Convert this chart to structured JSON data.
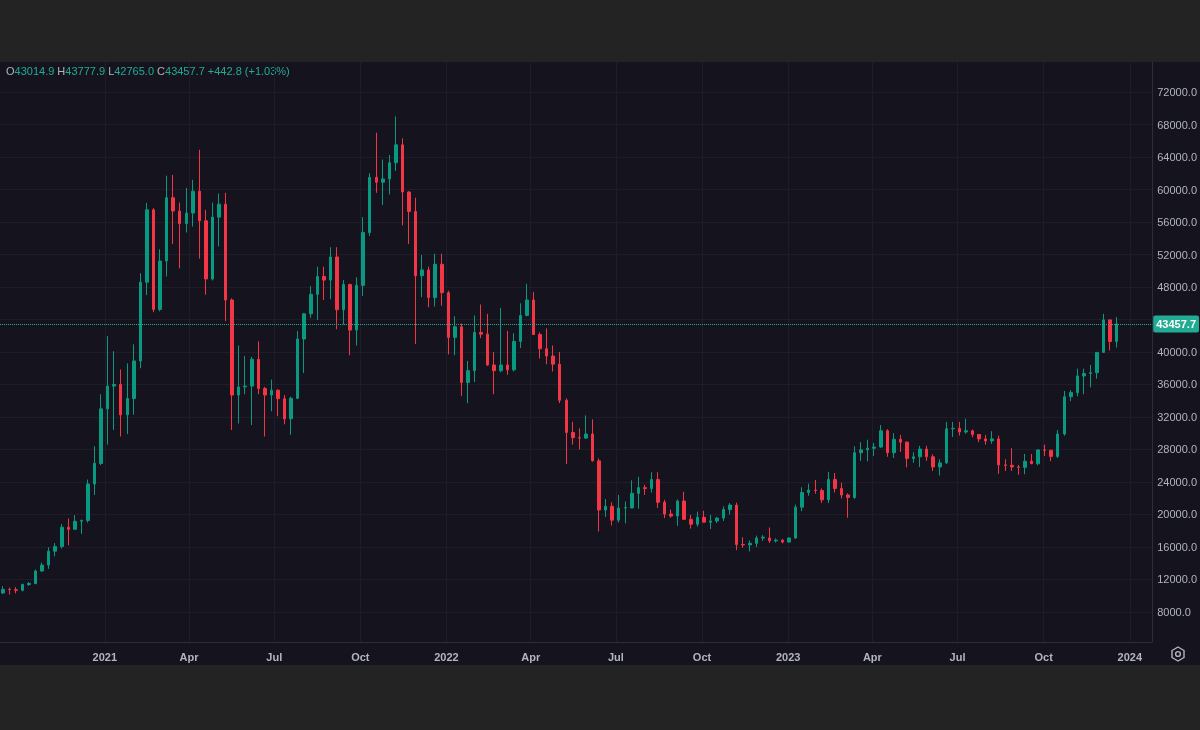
{
  "chart_data": {
    "type": "candlestick",
    "annotations": [
      "O43014.9 H43777.9 L42765.0 C43457.7 +442.8 (+1.03%)"
    ],
    "x": [
      "2020-09-14",
      "2020-09-21",
      "2020-09-28",
      "2020-10-05",
      "2020-10-12",
      "2020-10-19",
      "2020-10-26",
      "2020-11-02",
      "2020-11-09",
      "2020-11-16",
      "2020-11-23",
      "2020-11-30",
      "2020-12-07",
      "2020-12-14",
      "2020-12-21",
      "2020-12-28",
      "2021-01-04",
      "2021-01-11",
      "2021-01-18",
      "2021-01-25",
      "2021-02-01",
      "2021-02-08",
      "2021-02-15",
      "2021-02-22",
      "2021-03-01",
      "2021-03-08",
      "2021-03-15",
      "2021-03-22",
      "2021-03-29",
      "2021-04-05",
      "2021-04-12",
      "2021-04-19",
      "2021-04-26",
      "2021-05-03",
      "2021-05-10",
      "2021-05-17",
      "2021-05-24",
      "2021-05-31",
      "2021-06-07",
      "2021-06-14",
      "2021-06-21",
      "2021-06-28",
      "2021-07-05",
      "2021-07-12",
      "2021-07-19",
      "2021-07-26",
      "2021-08-02",
      "2021-08-09",
      "2021-08-16",
      "2021-08-23",
      "2021-08-30",
      "2021-09-06",
      "2021-09-13",
      "2021-09-20",
      "2021-09-27",
      "2021-10-04",
      "2021-10-11",
      "2021-10-18",
      "2021-10-25",
      "2021-11-01",
      "2021-11-08",
      "2021-11-15",
      "2021-11-22",
      "2021-11-29",
      "2021-12-06",
      "2021-12-13",
      "2021-12-20",
      "2021-12-27",
      "2022-01-03",
      "2022-01-10",
      "2022-01-17",
      "2022-01-24",
      "2022-01-31",
      "2022-02-07",
      "2022-02-14",
      "2022-02-21",
      "2022-02-28",
      "2022-03-07",
      "2022-03-14",
      "2022-03-21",
      "2022-03-28",
      "2022-04-04",
      "2022-04-11",
      "2022-04-18",
      "2022-04-25",
      "2022-05-02",
      "2022-05-09",
      "2022-05-16",
      "2022-05-23",
      "2022-05-30",
      "2022-06-06",
      "2022-06-13",
      "2022-06-20",
      "2022-06-27",
      "2022-07-04",
      "2022-07-11",
      "2022-07-18",
      "2022-07-25",
      "2022-08-01",
      "2022-08-08",
      "2022-08-15",
      "2022-08-22",
      "2022-08-29",
      "2022-09-05",
      "2022-09-12",
      "2022-09-19",
      "2022-09-26",
      "2022-10-03",
      "2022-10-10",
      "2022-10-17",
      "2022-10-24",
      "2022-10-31",
      "2022-11-07",
      "2022-11-14",
      "2022-11-21",
      "2022-11-28",
      "2022-12-05",
      "2022-12-12",
      "2022-12-19",
      "2022-12-26",
      "2023-01-02",
      "2023-01-09",
      "2023-01-16",
      "2023-01-23",
      "2023-01-30",
      "2023-02-06",
      "2023-02-13",
      "2023-02-20",
      "2023-02-27",
      "2023-03-06",
      "2023-03-13",
      "2023-03-20",
      "2023-03-27",
      "2023-04-03",
      "2023-04-10",
      "2023-04-17",
      "2023-04-24",
      "2023-05-01",
      "2023-05-08",
      "2023-05-15",
      "2023-05-22",
      "2023-05-29",
      "2023-06-05",
      "2023-06-12",
      "2023-06-19",
      "2023-06-26",
      "2023-07-03",
      "2023-07-10",
      "2023-07-17",
      "2023-07-24",
      "2023-07-31",
      "2023-08-07",
      "2023-08-14",
      "2023-08-21",
      "2023-08-28",
      "2023-09-04",
      "2023-09-11",
      "2023-09-18",
      "2023-09-25",
      "2023-10-02",
      "2023-10-09",
      "2023-10-16",
      "2023-10-23",
      "2023-10-30",
      "2023-11-06",
      "2023-11-13",
      "2023-11-20",
      "2023-11-27",
      "2023-12-04",
      "2023-12-11",
      "2023-12-18"
    ],
    "ohlc": [
      [
        10330,
        11180,
        10200,
        10780
      ],
      [
        10780,
        10990,
        10140,
        10740
      ],
      [
        10740,
        11050,
        10300,
        10670
      ],
      [
        10670,
        11490,
        10530,
        11380
      ],
      [
        11380,
        11700,
        11200,
        11500
      ],
      [
        11500,
        13220,
        11400,
        13030
      ],
      [
        13030,
        14090,
        12980,
        13770
      ],
      [
        13770,
        15960,
        13300,
        15480
      ],
      [
        15480,
        16480,
        14850,
        16050
      ],
      [
        16050,
        18820,
        15800,
        18420
      ],
      [
        18420,
        19500,
        16200,
        18180
      ],
      [
        18180,
        19920,
        18110,
        19160
      ],
      [
        19160,
        19390,
        17600,
        19260
      ],
      [
        19260,
        24300,
        19000,
        23750
      ],
      [
        23750,
        28400,
        22400,
        26280
      ],
      [
        26280,
        34800,
        26070,
        33000
      ],
      [
        33000,
        41950,
        28600,
        35800
      ],
      [
        35800,
        40100,
        30400,
        36000
      ],
      [
        36000,
        37850,
        29600,
        32270
      ],
      [
        32270,
        38600,
        29900,
        34270
      ],
      [
        34270,
        40950,
        32300,
        38900
      ],
      [
        38900,
        49700,
        38000,
        48600
      ],
      [
        48600,
        58350,
        47000,
        57500
      ],
      [
        57500,
        57700,
        44900,
        45240
      ],
      [
        45240,
        52650,
        45000,
        51200
      ],
      [
        51200,
        61700,
        49300,
        59000
      ],
      [
        59000,
        61800,
        53300,
        57350
      ],
      [
        57350,
        58400,
        50300,
        55800
      ],
      [
        55800,
        60200,
        54700,
        57100
      ],
      [
        57100,
        61200,
        55450,
        59800
      ],
      [
        59800,
        64900,
        51500,
        56150
      ],
      [
        56150,
        57500,
        47050,
        49000
      ],
      [
        49000,
        58400,
        48800,
        56600
      ],
      [
        56600,
        59500,
        53000,
        58200
      ],
      [
        58200,
        59600,
        43800,
        46400
      ],
      [
        46400,
        46600,
        30400,
        34700
      ],
      [
        34700,
        40800,
        31200,
        35700
      ],
      [
        35700,
        39500,
        34800,
        35800
      ],
      [
        35800,
        39400,
        31000,
        39100
      ],
      [
        39100,
        41300,
        34800,
        35500
      ],
      [
        35500,
        35700,
        29600,
        34700
      ],
      [
        34700,
        36600,
        32700,
        35300
      ],
      [
        35300,
        35400,
        32100,
        34250
      ],
      [
        34250,
        34700,
        31100,
        31770
      ],
      [
        31770,
        34500,
        29800,
        34300
      ],
      [
        34300,
        42600,
        34200,
        41600
      ],
      [
        41600,
        44800,
        37400,
        44700
      ],
      [
        44700,
        48100,
        44200,
        47100
      ],
      [
        47100,
        50500,
        43950,
        49300
      ],
      [
        49300,
        50500,
        46400,
        48850
      ],
      [
        48850,
        52900,
        46500,
        51700
      ],
      [
        51700,
        52900,
        42800,
        45200
      ],
      [
        45200,
        48850,
        43400,
        48300
      ],
      [
        48300,
        48400,
        39600,
        42700
      ],
      [
        42700,
        49200,
        40800,
        48200
      ],
      [
        48200,
        56600,
        46900,
        54700
      ],
      [
        54700,
        62000,
        54300,
        61500
      ],
      [
        61500,
        67000,
        59600,
        60900
      ],
      [
        60900,
        63700,
        58100,
        61300
      ],
      [
        61300,
        64250,
        59400,
        63300
      ],
      [
        63300,
        69000,
        62300,
        65500
      ],
      [
        65500,
        66300,
        55600,
        59700
      ],
      [
        59700,
        59800,
        53300,
        57300
      ],
      [
        57300,
        59000,
        41000,
        49400
      ],
      [
        49400,
        51950,
        46750,
        50100
      ],
      [
        50100,
        50500,
        45500,
        46700
      ],
      [
        46700,
        52100,
        45600,
        50800
      ],
      [
        50800,
        52100,
        45700,
        47300
      ],
      [
        47300,
        47550,
        39700,
        41800
      ],
      [
        41800,
        44400,
        39600,
        43100
      ],
      [
        43100,
        43500,
        34600,
        36250
      ],
      [
        36250,
        38900,
        33700,
        37700
      ],
      [
        37700,
        44500,
        36300,
        42400
      ],
      [
        42400,
        45850,
        41700,
        42200
      ],
      [
        42200,
        44700,
        38300,
        38400
      ],
      [
        38400,
        40000,
        34800,
        37700
      ],
      [
        37700,
        45400,
        37500,
        38400
      ],
      [
        38400,
        42600,
        37200,
        37800
      ],
      [
        37800,
        42300,
        37600,
        41300
      ],
      [
        41300,
        46000,
        40500,
        44500
      ],
      [
        44500,
        48400,
        44400,
        46400
      ],
      [
        46400,
        47400,
        42100,
        42150
      ],
      [
        42150,
        42400,
        39200,
        40400
      ],
      [
        40400,
        42900,
        38500,
        39500
      ],
      [
        39500,
        40800,
        37600,
        38500
      ],
      [
        38500,
        40000,
        33700,
        34050
      ],
      [
        34050,
        34300,
        26200,
        30100
      ],
      [
        30100,
        31400,
        28600,
        29450
      ],
      [
        29450,
        30600,
        28000,
        29400
      ],
      [
        29400,
        32200,
        29300,
        29900
      ],
      [
        29900,
        31700,
        26500,
        26600
      ],
      [
        26600,
        26900,
        17900,
        20550
      ],
      [
        20550,
        21900,
        19700,
        21000
      ],
      [
        21000,
        21500,
        18650,
        19300
      ],
      [
        19300,
        22400,
        19000,
        20800
      ],
      [
        20800,
        21600,
        18900,
        20850
      ],
      [
        20800,
        24200,
        20750,
        22600
      ],
      [
        22600,
        24650,
        20700,
        23300
      ],
      [
        23300,
        23650,
        22400,
        23200
      ],
      [
        23200,
        25200,
        22700,
        24300
      ],
      [
        24300,
        25200,
        20800,
        21500
      ],
      [
        21500,
        21800,
        19550,
        20050
      ],
      [
        20050,
        20600,
        19600,
        19800
      ],
      [
        19800,
        21850,
        18600,
        21650
      ],
      [
        21650,
        22800,
        19300,
        19400
      ],
      [
        19400,
        19950,
        18250,
        18800
      ],
      [
        18800,
        20350,
        18500,
        19650
      ],
      [
        19650,
        20450,
        19000,
        19050
      ],
      [
        19050,
        19950,
        18200,
        19200
      ],
      [
        19200,
        19700,
        18950,
        19550
      ],
      [
        19550,
        21000,
        19200,
        20600
      ],
      [
        20600,
        21400,
        20000,
        21150
      ],
      [
        21150,
        21450,
        15600,
        16300
      ],
      [
        16300,
        17200,
        15900,
        16250
      ],
      [
        16250,
        16800,
        15450,
        16450
      ],
      [
        16450,
        17400,
        16000,
        17100
      ],
      [
        17100,
        17450,
        16750,
        17200
      ],
      [
        17100,
        18400,
        16500,
        16750
      ],
      [
        16750,
        17050,
        16550,
        16840
      ],
      [
        16840,
        16970,
        16450,
        16600
      ],
      [
        16600,
        17150,
        16550,
        17100
      ],
      [
        17100,
        21200,
        17000,
        20900
      ],
      [
        20900,
        23350,
        20400,
        22700
      ],
      [
        22700,
        23800,
        22300,
        23000
      ],
      [
        23000,
        24250,
        22550,
        22950
      ],
      [
        22950,
        23200,
        21400,
        21800
      ],
      [
        21800,
        25250,
        21400,
        24300
      ],
      [
        24300,
        25100,
        22700,
        23200
      ],
      [
        23200,
        23900,
        21950,
        22400
      ],
      [
        22400,
        22600,
        19600,
        22100
      ],
      [
        22100,
        28400,
        21900,
        27600
      ],
      [
        27600,
        28900,
        26600,
        27950
      ],
      [
        27950,
        29200,
        26550,
        28150
      ],
      [
        28150,
        28800,
        27200,
        28300
      ],
      [
        28300,
        31000,
        28200,
        30300
      ],
      [
        30300,
        30500,
        27100,
        27600
      ],
      [
        27600,
        30000,
        26950,
        29250
      ],
      [
        29250,
        29800,
        27700,
        28900
      ],
      [
        28900,
        29000,
        25800,
        26900
      ],
      [
        26900,
        27650,
        26350,
        27100
      ],
      [
        27100,
        28450,
        25850,
        28050
      ],
      [
        28050,
        28450,
        26600,
        27100
      ],
      [
        27100,
        27400,
        25350,
        25850
      ],
      [
        25850,
        26800,
        24800,
        26350
      ],
      [
        26350,
        31400,
        26250,
        30550
      ],
      [
        30550,
        31400,
        29550,
        30600
      ],
      [
        30600,
        31400,
        29700,
        30150
      ],
      [
        30150,
        31800,
        29950,
        30300
      ],
      [
        30300,
        30450,
        29500,
        29850
      ],
      [
        29850,
        29900,
        28900,
        29300
      ],
      [
        29300,
        29800,
        28600,
        29050
      ],
      [
        29050,
        30250,
        28700,
        29300
      ],
      [
        29300,
        29700,
        25000,
        26100
      ],
      [
        26100,
        26800,
        25350,
        26050
      ],
      [
        26050,
        28150,
        25350,
        25850
      ],
      [
        25850,
        26100,
        24900,
        25800
      ],
      [
        25800,
        27450,
        24950,
        26550
      ],
      [
        26550,
        27450,
        26200,
        26250
      ],
      [
        26250,
        28000,
        26050,
        27950
      ],
      [
        27950,
        28600,
        27200,
        27900
      ],
      [
        27900,
        27950,
        26550,
        27150
      ],
      [
        27150,
        30400,
        26950,
        29900
      ],
      [
        29900,
        35200,
        29700,
        34500
      ],
      [
        34500,
        35300,
        33950,
        35000
      ],
      [
        35000,
        37950,
        34550,
        37050
      ],
      [
        37050,
        37950,
        34800,
        37350
      ],
      [
        37350,
        38400,
        35650,
        37450
      ],
      [
        37450,
        40000,
        36700,
        39950
      ],
      [
        39950,
        44700,
        39900,
        43950
      ],
      [
        43950,
        44000,
        40200,
        41300
      ],
      [
        41300,
        44300,
        40550,
        43457.7
      ]
    ],
    "colors": [
      "#089981",
      "#f23645",
      "#f23645",
      "#089981",
      "#089981",
      "#089981",
      "#089981",
      "#089981",
      "#089981",
      "#089981",
      "#f23645",
      "#089981",
      "#089981",
      "#089981",
      "#089981",
      "#089981",
      "#089981",
      "#089981",
      "#f23645",
      "#089981",
      "#089981",
      "#089981",
      "#089981",
      "#f23645",
      "#089981",
      "#089981",
      "#f23645",
      "#f23645",
      "#089981",
      "#089981",
      "#f23645",
      "#f23645",
      "#089981",
      "#089981",
      "#f23645",
      "#f23645",
      "#089981",
      "#089981",
      "#089981",
      "#f23645",
      "#f23645",
      "#089981",
      "#f23645",
      "#f23645",
      "#089981",
      "#089981",
      "#089981",
      "#089981",
      "#089981",
      "#f23645",
      "#089981",
      "#f23645",
      "#089981",
      "#f23645",
      "#089981",
      "#089981",
      "#089981",
      "#f23645",
      "#089981",
      "#089981",
      "#089981",
      "#f23645",
      "#f23645",
      "#f23645",
      "#089981",
      "#f23645",
      "#089981",
      "#f23645",
      "#f23645",
      "#089981",
      "#f23645",
      "#089981",
      "#089981",
      "#f23645",
      "#f23645",
      "#f23645",
      "#089981",
      "#f23645",
      "#089981",
      "#089981",
      "#089981",
      "#f23645",
      "#f23645",
      "#f23645",
      "#f23645",
      "#f23645",
      "#f23645",
      "#f23645",
      "#f23645",
      "#089981",
      "#f23645",
      "#f23645",
      "#089981",
      "#f23645",
      "#089981",
      "#089981",
      "#089981",
      "#089981",
      "#f23645",
      "#089981",
      "#f23645",
      "#f23645",
      "#f23645",
      "#089981",
      "#f23645",
      "#f23645",
      "#089981",
      "#f23645",
      "#089981",
      "#089981",
      "#089981",
      "#089981",
      "#f23645",
      "#f23645",
      "#089981",
      "#089981",
      "#089981",
      "#f23645",
      "#089981",
      "#f23645",
      "#089981",
      "#089981",
      "#089981",
      "#089981",
      "#f23645",
      "#f23645",
      "#089981",
      "#f23645",
      "#f23645",
      "#f23645",
      "#089981",
      "#089981",
      "#089981",
      "#089981",
      "#089981",
      "#f23645",
      "#089981",
      "#f23645",
      "#f23645",
      "#089981",
      "#089981",
      "#f23645",
      "#f23645",
      "#089981",
      "#089981",
      "#089981",
      "#f23645",
      "#089981",
      "#f23645",
      "#f23645",
      "#f23645",
      "#089981",
      "#f23645",
      "#f23645",
      "#f23645",
      "#f23645",
      "#089981",
      "#f23645",
      "#089981",
      "#f23645",
      "#f23645",
      "#089981",
      "#089981",
      "#089981",
      "#089981",
      "#089981",
      "#089981",
      "#089981",
      "#089981",
      "#f23645",
      "#089981"
    ],
    "xlim": [
      "2020-09-11",
      "2024-01-25"
    ],
    "xticks": [
      "2021",
      {
        "value": "2021-04",
        "label": "Apr"
      },
      {
        "value": "2021-07",
        "label": "Jul"
      },
      {
        "value": "2021-10",
        "label": "Oct"
      },
      "2022",
      {
        "value": "2022-04",
        "label": "Apr"
      },
      {
        "value": "2022-07",
        "label": "Jul"
      },
      {
        "value": "2022-10",
        "label": "Oct"
      },
      "2023",
      {
        "value": "2023-04",
        "label": "Apr"
      },
      {
        "value": "2023-07",
        "label": "Jul"
      },
      {
        "value": "2023-10",
        "label": "Oct"
      },
      "2024"
    ],
    "ylim": [
      4300,
      75700
    ],
    "yticks": [
      {
        "value": 8000,
        "label": "8000.0"
      },
      {
        "value": 12000,
        "label": "12000.0"
      },
      {
        "value": 16000,
        "label": "16000.0"
      },
      {
        "value": 20000,
        "label": "20000.0"
      },
      {
        "value": 24000,
        "label": "24000.0"
      },
      {
        "value": 28000,
        "label": "28000.0"
      },
      {
        "value": 32000,
        "label": "32000.0"
      },
      {
        "value": 36000,
        "label": "36000.0"
      },
      {
        "value": 40000,
        "label": "40000.0"
      },
      {
        "value": 44000,
        "label": null
      },
      {
        "value": 48000,
        "label": "48000.0"
      },
      {
        "value": 52000,
        "label": "52000.0"
      },
      {
        "value": 56000,
        "label": "56000.0"
      },
      {
        "value": 60000,
        "label": "60000.0"
      },
      {
        "value": 64000,
        "label": "64000.0"
      },
      {
        "value": 68000,
        "label": "68000.0"
      },
      {
        "value": 72000,
        "label": "72000.0"
      }
    ],
    "grid": true,
    "ref_lines": [
      {
        "axis": "y",
        "value": 43457.7,
        "label": "43457.7",
        "color": "#22ab94",
        "line_style": "dotted"
      }
    ]
  }
}
